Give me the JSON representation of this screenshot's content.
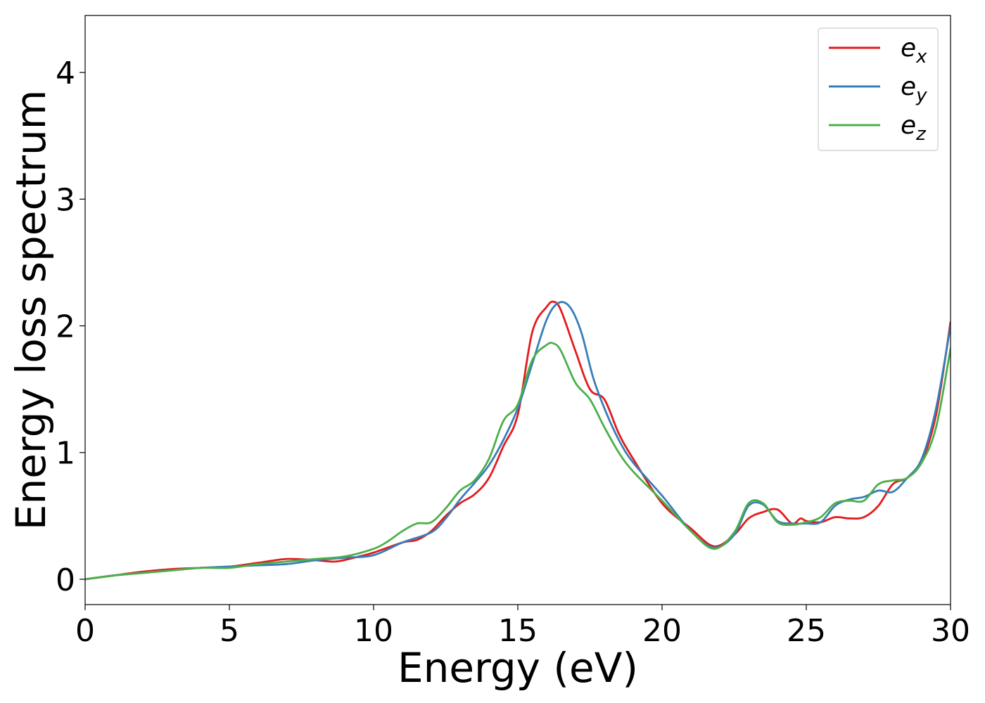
{
  "chart_data": {
    "type": "line",
    "title": "",
    "xlabel": "Energy (eV)",
    "ylabel": "Energy loss spectrum",
    "xlim": [
      0,
      30
    ],
    "ylim": [
      -0.2,
      4.45
    ],
    "xticks": [
      0,
      5,
      10,
      15,
      20,
      25,
      30
    ],
    "yticks": [
      0,
      1,
      2,
      3,
      4
    ],
    "xtick_labels": [
      "0",
      "5",
      "10",
      "15",
      "20",
      "25",
      "30"
    ],
    "ytick_labels": [
      "0",
      "1",
      "2",
      "3",
      "4"
    ],
    "grid": false,
    "legend_position": "top-right",
    "series": [
      {
        "name": "e_x",
        "label_base": "e",
        "label_sub": "x",
        "color": "#e41a1c",
        "x": [
          0,
          1,
          2,
          3,
          4,
          5,
          6,
          7,
          8,
          8.7,
          9.5,
          10,
          11,
          11.5,
          12,
          12.5,
          13,
          13.5,
          14,
          14.5,
          15,
          15.5,
          16,
          16.25,
          16.5,
          17,
          17.5,
          18,
          18.5,
          19,
          20,
          21,
          21.8,
          22.5,
          23,
          23.5,
          24,
          24.5,
          24.8,
          25,
          25.5,
          26,
          26.5,
          27,
          27.5,
          28,
          28.5,
          29,
          29.5,
          30
        ],
        "y": [
          0,
          0.03,
          0.06,
          0.08,
          0.09,
          0.1,
          0.13,
          0.16,
          0.15,
          0.14,
          0.18,
          0.21,
          0.29,
          0.31,
          0.38,
          0.5,
          0.6,
          0.67,
          0.8,
          1.05,
          1.3,
          1.95,
          2.15,
          2.19,
          2.12,
          1.8,
          1.5,
          1.42,
          1.15,
          0.95,
          0.6,
          0.4,
          0.26,
          0.35,
          0.48,
          0.53,
          0.55,
          0.44,
          0.48,
          0.46,
          0.45,
          0.49,
          0.48,
          0.49,
          0.58,
          0.75,
          0.8,
          0.93,
          1.3,
          2.03
        ]
      },
      {
        "name": "e_y",
        "label_base": "e",
        "label_sub": "y",
        "color": "#377eb8",
        "x": [
          0,
          1,
          2,
          3,
          4,
          5,
          6,
          7,
          8,
          9,
          10,
          11,
          12,
          12.5,
          13,
          13.5,
          14,
          14.5,
          15,
          15.5,
          16,
          16.4,
          16.8,
          17.2,
          17.6,
          18,
          18.5,
          19,
          20,
          21,
          21.8,
          22.5,
          23,
          23.5,
          24,
          24.5,
          25,
          25.5,
          26,
          26.5,
          27,
          27.5,
          28,
          28.5,
          29,
          29.5,
          30
        ],
        "y": [
          0,
          0.03,
          0.05,
          0.07,
          0.09,
          0.1,
          0.11,
          0.12,
          0.15,
          0.17,
          0.19,
          0.29,
          0.37,
          0.48,
          0.63,
          0.76,
          0.9,
          1.1,
          1.35,
          1.7,
          2.05,
          2.18,
          2.15,
          1.95,
          1.6,
          1.35,
          1.1,
          0.92,
          0.66,
          0.38,
          0.25,
          0.35,
          0.58,
          0.59,
          0.46,
          0.44,
          0.44,
          0.45,
          0.58,
          0.63,
          0.65,
          0.7,
          0.69,
          0.8,
          0.95,
          1.35,
          2.0
        ]
      },
      {
        "name": "e_z",
        "label_base": "e",
        "label_sub": "z",
        "color": "#4daf4a",
        "x": [
          0,
          1,
          2,
          3,
          4,
          5,
          6,
          7,
          8,
          9,
          10,
          10.5,
          11,
          11.5,
          12,
          12.5,
          13,
          13.5,
          14,
          14.5,
          15,
          15.5,
          16,
          16.25,
          16.5,
          17,
          17.5,
          18,
          18.5,
          19,
          20,
          21,
          21.8,
          22.5,
          23,
          23.5,
          24,
          24.5,
          25,
          25.5,
          26,
          26.5,
          27,
          27.5,
          28,
          28.5,
          29,
          29.5,
          30
        ],
        "y": [
          0,
          0.03,
          0.05,
          0.07,
          0.09,
          0.09,
          0.12,
          0.14,
          0.16,
          0.18,
          0.24,
          0.3,
          0.38,
          0.44,
          0.45,
          0.56,
          0.7,
          0.78,
          0.95,
          1.25,
          1.38,
          1.73,
          1.85,
          1.86,
          1.8,
          1.55,
          1.42,
          1.2,
          1.0,
          0.85,
          0.62,
          0.38,
          0.24,
          0.37,
          0.6,
          0.6,
          0.45,
          0.43,
          0.45,
          0.49,
          0.6,
          0.62,
          0.62,
          0.75,
          0.78,
          0.8,
          0.92,
          1.2,
          1.82
        ]
      }
    ]
  }
}
